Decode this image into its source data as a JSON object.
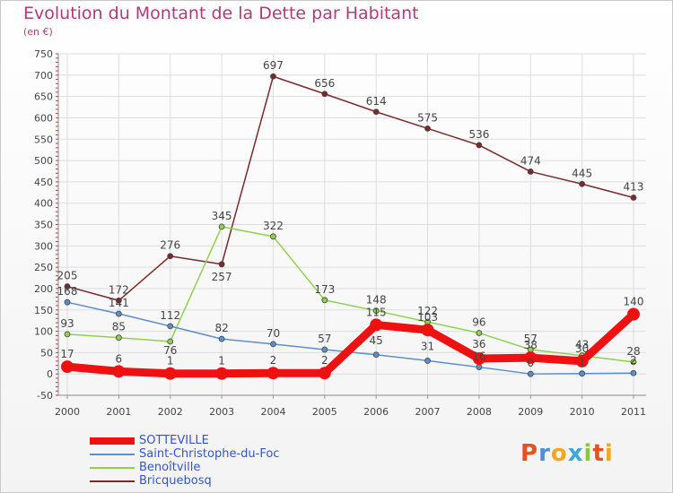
{
  "header": {
    "title": "Evolution du Montant de la Dette par Habitant",
    "unit": "(en €)"
  },
  "brand": {
    "text": "Proxiti",
    "letter_colors": [
      "#e8501e",
      "#4a90d9",
      "#f2a81d",
      "#3aa8d8",
      "#8cc63f",
      "#e8501e",
      "#f2a81d"
    ]
  },
  "chart_data": {
    "type": "line",
    "title": "Evolution du Montant de la Dette par Habitant",
    "ylabel": "(en €)",
    "xlabel": "",
    "ylim": [
      -50,
      750
    ],
    "yticks": [
      -50,
      0,
      50,
      100,
      150,
      200,
      250,
      300,
      350,
      400,
      450,
      500,
      550,
      600,
      650,
      700,
      750
    ],
    "categories": [
      "2000",
      "2001",
      "2002",
      "2003",
      "2004",
      "2005",
      "2006",
      "2007",
      "2008",
      "2009",
      "2010",
      "2011"
    ],
    "grid": true,
    "legend_position": "bottom-left",
    "series": [
      {
        "name": "SOTTEVILLE",
        "color": "#ee1111",
        "style": "thick",
        "values": [
          17,
          6,
          1,
          1,
          2,
          2,
          115,
          103,
          36,
          38,
          30,
          140
        ],
        "labels": [
          "17",
          "6",
          "1",
          "1",
          "2",
          "2",
          "115",
          "103",
          "36",
          "38",
          "30",
          "140"
        ]
      },
      {
        "name": "Saint-Christophe-du-Foc",
        "color": "#5b8fc9",
        "style": "thin",
        "values": [
          168,
          141,
          112,
          82,
          70,
          57,
          45,
          31,
          16,
          0,
          1,
          2
        ],
        "labels": [
          "168",
          "141",
          "112",
          "82",
          "70",
          "57",
          "45",
          "31",
          "16",
          "0",
          "1",
          "2"
        ]
      },
      {
        "name": "Benoîtville",
        "color": "#8ed14f",
        "style": "thin",
        "values": [
          93,
          85,
          76,
          345,
          322,
          173,
          148,
          122,
          96,
          57,
          43,
          28
        ],
        "labels": [
          "93",
          "85",
          "76",
          "345",
          "322",
          "173",
          "148",
          "122",
          "96",
          "57",
          "43",
          "28"
        ]
      },
      {
        "name": "Bricquebosq",
        "color": "#7a2a2a",
        "style": "thin",
        "values": [
          205,
          172,
          276,
          257,
          697,
          656,
          614,
          575,
          536,
          474,
          445,
          413
        ],
        "labels": [
          "205",
          "172",
          "276",
          "257",
          "697",
          "656",
          "614",
          "575",
          "536",
          "474",
          "445",
          "413"
        ]
      }
    ]
  }
}
